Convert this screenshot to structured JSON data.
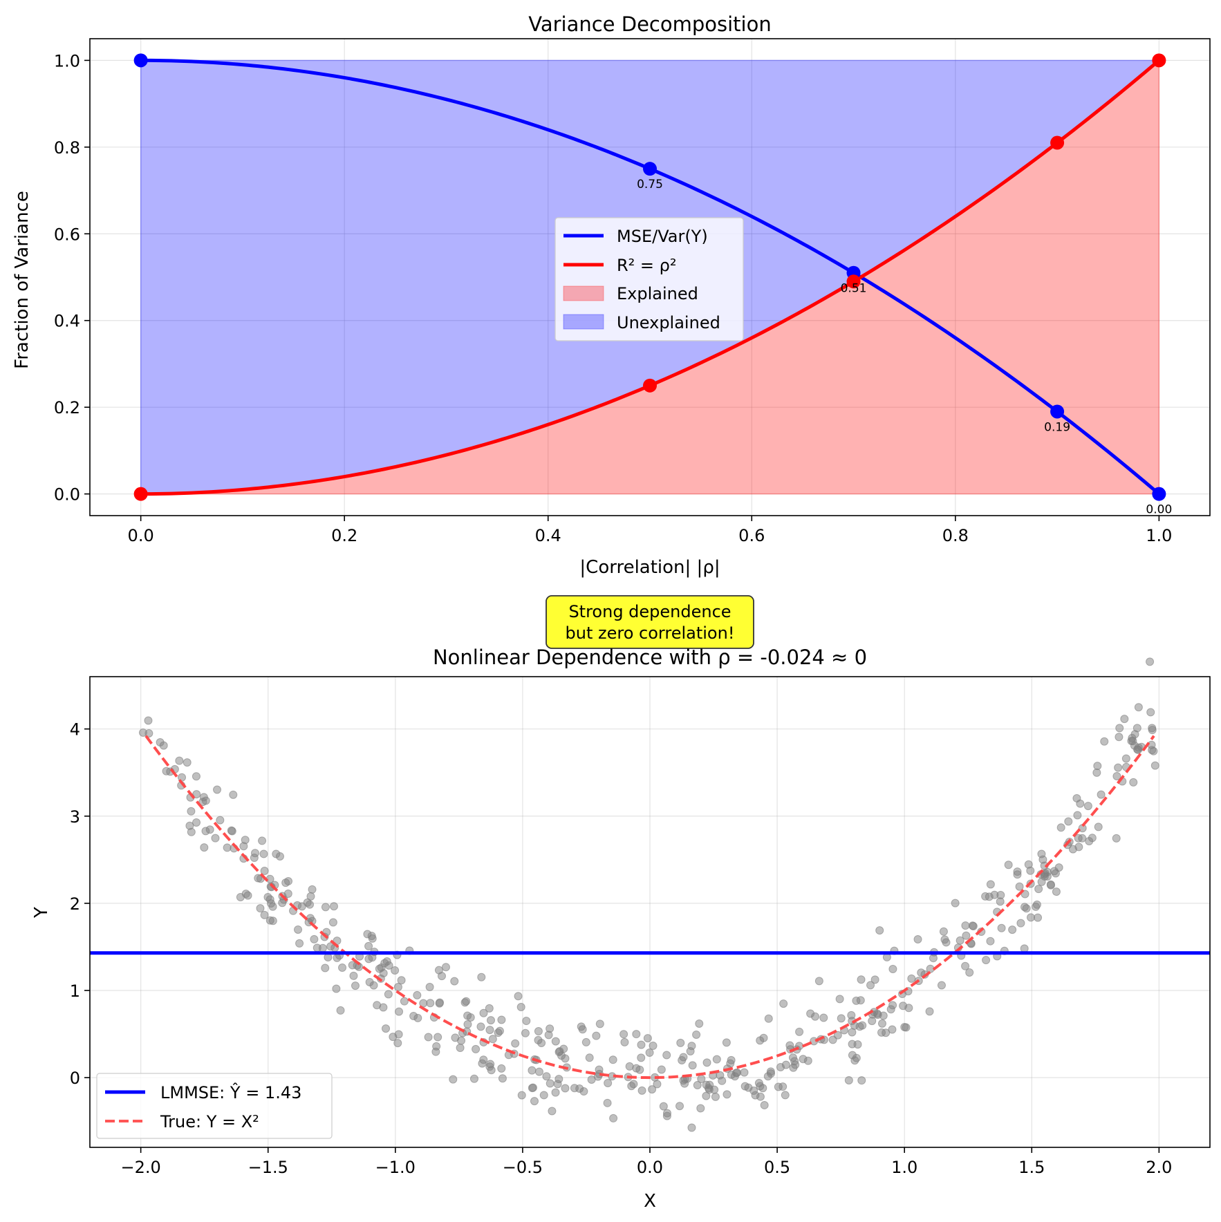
{
  "chart_data": [
    {
      "type": "line",
      "title": "Variance Decomposition",
      "xlabel": "|Correlation| |ρ|",
      "ylabel": "Fraction of Variance",
      "xlim": [
        -0.05,
        1.05
      ],
      "ylim": [
        -0.05,
        1.05
      ],
      "xticks": [
        "0.0",
        "0.2",
        "0.4",
        "0.6",
        "0.8",
        "1.0"
      ],
      "yticks": [
        "0.0",
        "0.2",
        "0.4",
        "0.6",
        "0.8",
        "1.0"
      ],
      "grid": true,
      "legend_position": "center",
      "series": [
        {
          "name": "MSE/Var(Y)",
          "color": "#0000ff",
          "function": "1 - rho^2",
          "marker_x": [
            0.0,
            0.5,
            0.7,
            0.9,
            1.0
          ],
          "marker_y": [
            1.0,
            0.75,
            0.51,
            0.19,
            0.0
          ]
        },
        {
          "name": "R² = ρ²",
          "color": "#ff0000",
          "function": "rho^2",
          "marker_x": [
            0.0,
            0.5,
            0.7,
            0.9,
            1.0
          ],
          "marker_y": [
            0.0,
            0.25,
            0.49,
            0.81,
            1.0
          ]
        }
      ],
      "fills": [
        {
          "name": "Explained",
          "color": "#ff0000",
          "alpha": 0.3
        },
        {
          "name": "Unexplained",
          "color": "#0000ff",
          "alpha": 0.3
        }
      ],
      "annotations": [
        {
          "x": 0.5,
          "y": 0.75,
          "text": "0.75"
        },
        {
          "x": 0.7,
          "y": 0.51,
          "text": "0.51"
        },
        {
          "x": 0.9,
          "y": 0.19,
          "text": "0.19"
        },
        {
          "x": 1.0,
          "y": 0.0,
          "text": "0.00"
        }
      ]
    },
    {
      "type": "scatter",
      "title": "Nonlinear Dependence with ρ = -0.024 ≈ 0",
      "xlabel": "X",
      "ylabel": "Y",
      "xlim": [
        -2.2,
        2.2
      ],
      "ylim": [
        -0.8,
        4.6
      ],
      "xticks": [
        "−2.0",
        "−1.5",
        "−1.0",
        "−0.5",
        "0.0",
        "0.5",
        "1.0",
        "1.5",
        "2.0"
      ],
      "yticks": [
        "0",
        "1",
        "2",
        "3",
        "4"
      ],
      "grid": true,
      "legend_position": "lower-left",
      "scatter": {
        "color": "#808080",
        "alpha": 0.5,
        "n_points": 500,
        "x_range": [
          -2.0,
          2.0
        ],
        "model": "Y = X² + noise"
      },
      "series": [
        {
          "name": "LMMSE: Ŷ = 1.43",
          "color": "#0000ff",
          "style": "solid",
          "y_const": 1.43
        },
        {
          "name": "True: Y = X²",
          "color": "#ff4444",
          "style": "dashed",
          "function": "x^2"
        }
      ],
      "callout": "Strong dependence\nbut zero correlation!",
      "callout_color": "#ffff33"
    }
  ]
}
